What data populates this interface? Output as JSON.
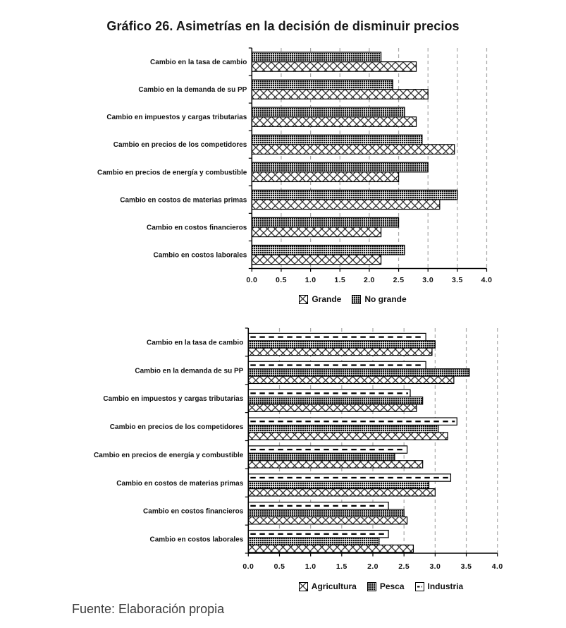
{
  "page": {
    "title": "Gráfico 26. Asimetrías en la decisión de disminuir precios",
    "source": "Fuente: Elaboración propia"
  },
  "colors": {
    "text": "#111111",
    "source_text": "#3d3d3d",
    "grid": "#a8a8a8",
    "axis": "#000000",
    "bar_dark_fill": "#0f0f0f",
    "background": "#ffffff"
  },
  "chart_data": [
    {
      "type": "bar",
      "orientation": "horizontal",
      "title": "",
      "categories": [
        "Cambio en la tasa de cambio",
        "Cambio en la demanda de su PP",
        "Cambio en impuestos y cargas tributarias",
        "Cambio en precios de los competidores",
        "Cambio en precios de energía y combustible",
        "Cambio en costos de materias primas",
        "Cambio en costos financieros",
        "Cambio en costos laborales"
      ],
      "series": [
        {
          "name": "Grande",
          "pattern": "crosshatch",
          "values": [
            2.8,
            3.0,
            2.8,
            3.45,
            2.5,
            3.2,
            2.2,
            2.2
          ]
        },
        {
          "name": "No grande",
          "pattern": "dots",
          "values": [
            2.2,
            2.4,
            2.6,
            2.9,
            3.0,
            3.5,
            2.5,
            2.6
          ]
        }
      ],
      "xlim": [
        0,
        4
      ],
      "xticks": [
        "0.0",
        "0.5",
        "1.0",
        "1.5",
        "2.0",
        "2.5",
        "3.0",
        "3.5",
        "4.0"
      ],
      "grid": "dashed-vertical-gridlines",
      "legend_position": "bottom"
    },
    {
      "type": "bar",
      "orientation": "horizontal",
      "title": "",
      "categories": [
        "Cambio en la tasa de cambio",
        "Cambio en la demanda de su PP",
        "Cambio en impuestos y cargas tributarias",
        "Cambio en precios de los competidores",
        "Cambio en precios de energía y combustible",
        "Cambio en costos de materias primas",
        "Cambio en costos financieros",
        "Cambio en costos laborales"
      ],
      "series": [
        {
          "name": "Agricultura",
          "pattern": "crosshatch",
          "values": [
            2.95,
            3.3,
            2.7,
            3.2,
            2.8,
            3.0,
            2.55,
            2.65
          ]
        },
        {
          "name": "Pesca",
          "pattern": "dots",
          "values": [
            3.0,
            3.55,
            2.8,
            3.05,
            2.35,
            2.9,
            2.5,
            2.1
          ]
        },
        {
          "name": "Industria",
          "pattern": "dash",
          "values": [
            2.85,
            2.85,
            2.6,
            3.35,
            2.55,
            3.25,
            2.25,
            2.25
          ]
        }
      ],
      "xlim": [
        0,
        4
      ],
      "xticks": [
        "0.0",
        "0.5",
        "1.0",
        "1.5",
        "2.0",
        "2.5",
        "3.0",
        "3.5",
        "4.0"
      ],
      "grid": "dashed-vertical-gridlines",
      "legend_position": "bottom"
    }
  ]
}
